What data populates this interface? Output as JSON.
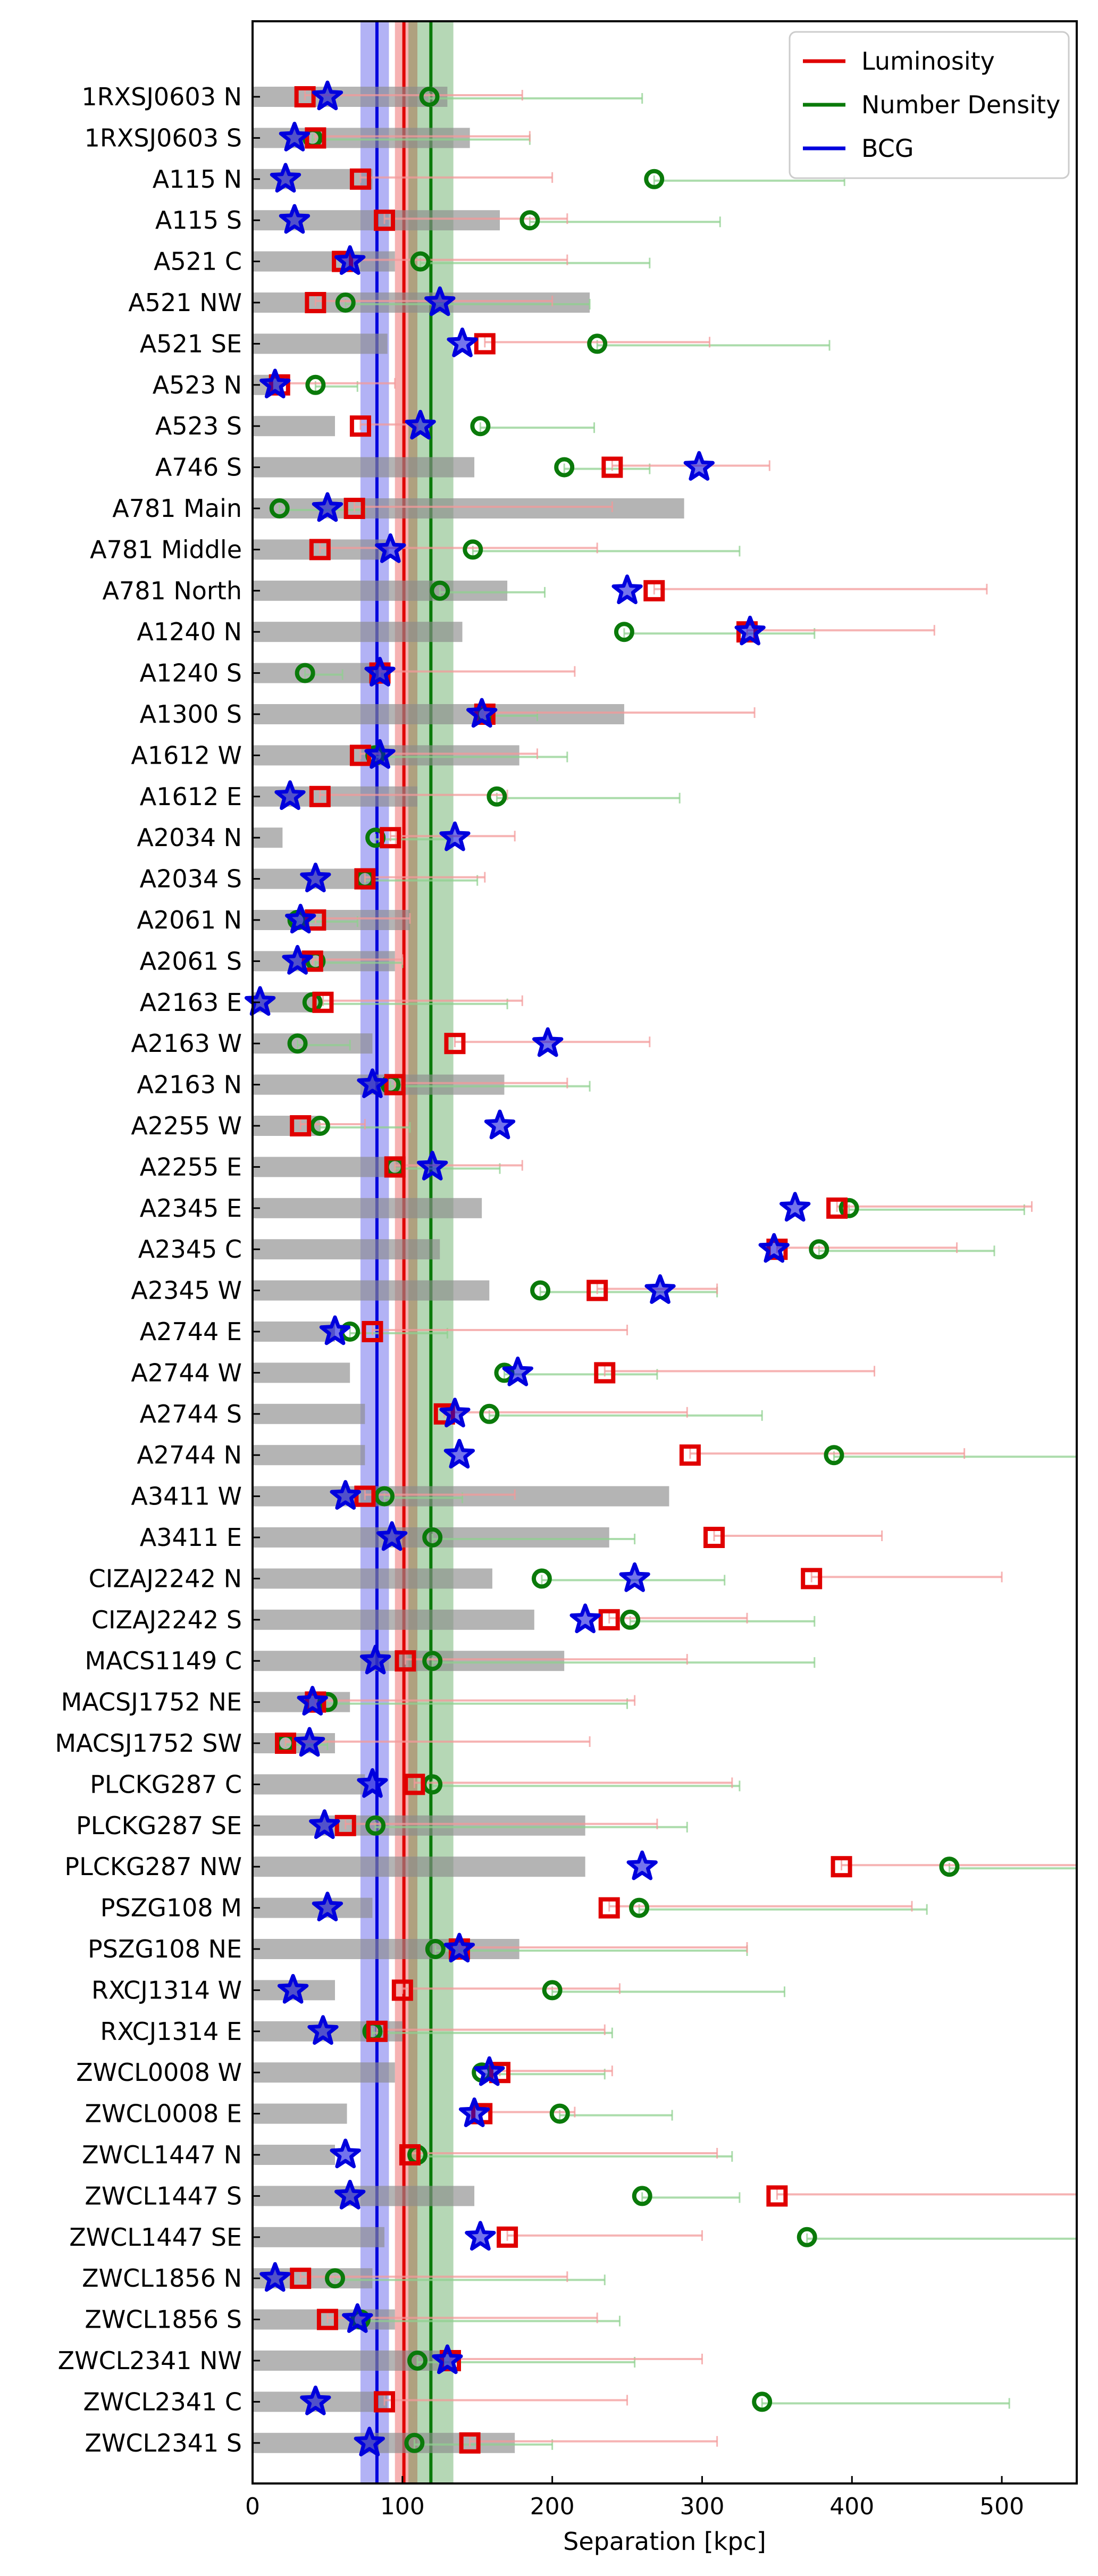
{
  "chart_data": {
    "type": "scatter",
    "orientation": "horizontal",
    "xlabel": "Separation [kpc]",
    "ylabel": "",
    "xlim": [
      0,
      550
    ],
    "xticks": [
      0,
      100,
      200,
      300,
      400,
      500
    ],
    "grid": false,
    "legend_position": "top-right",
    "legend": [
      {
        "name": "Luminosity",
        "color": "#e00000"
      },
      {
        "name": "Number Density",
        "color": "#0a7a0a"
      },
      {
        "name": "BCG",
        "color": "#0000dd"
      }
    ],
    "summary_bands": [
      {
        "name": "BCG",
        "color": "#0000dd",
        "value": 83,
        "low": 72,
        "high": 91
      },
      {
        "name": "Luminosity",
        "color": "#e00000",
        "value": 101,
        "low": 95,
        "high": 110
      },
      {
        "name": "Number Density",
        "color": "#0a7a0a",
        "value": 119,
        "low": 104,
        "high": 134
      }
    ],
    "series_colors": {
      "gray": "#8c8c8c",
      "err_lum": "#f39a9a",
      "err_num": "#8fd08f"
    },
    "categories": [
      "1RXSJ0603 N",
      "1RXSJ0603 S",
      "A115 N",
      "A115 S",
      "A521 C",
      "A521 NW",
      "A521 SE",
      "A523 N",
      "A523 S",
      "A746 S",
      "A781 Main",
      "A781 Middle",
      "A781 North",
      "A1240 N",
      "A1240 S",
      "A1300 S",
      "A1612 W",
      "A1612 E",
      "A2034 N",
      "A2034 S",
      "A2061 N",
      "A2061 S",
      "A2163 E",
      "A2163 W",
      "A2163 N",
      "A2255 W",
      "A2255 E",
      "A2345 E",
      "A2345 C",
      "A2345 W",
      "A2744 E",
      "A2744 W",
      "A2744 S",
      "A2744 N",
      "A3411 W",
      "A3411 E",
      "CIZAJ2242 N",
      "CIZAJ2242 S",
      "MACS1149 C",
      "MACSJ1752 NE",
      "MACSJ1752 SW",
      "PLCKG287 C",
      "PLCKG287 SE",
      "PLCKG287 NW",
      "PSZG108 M",
      "PSZG108 NE",
      "RXCJ1314 W",
      "RXCJ1314 E",
      "ZWCL0008 W",
      "ZWCL0008 E",
      "ZWCL1447 N",
      "ZWCL1447 S",
      "ZWCL1447 SE",
      "ZWCL1856 N",
      "ZWCL1856 S",
      "ZWCL2341 NW",
      "ZWCL2341 C",
      "ZWCL2341 S"
    ],
    "uncertainty": [
      130,
      145,
      80,
      165,
      95,
      225,
      90,
      20,
      55,
      148,
      288,
      90,
      170,
      140,
      90,
      248,
      178,
      110,
      20,
      80,
      105,
      95,
      45,
      80,
      168,
      45,
      100,
      153,
      125,
      158,
      55,
      65,
      75,
      75,
      278,
      238,
      160,
      188,
      208,
      65,
      55,
      75,
      222,
      222,
      80,
      178,
      55,
      100,
      95,
      63,
      55,
      148,
      88,
      80,
      95,
      128,
      90,
      175
    ],
    "luminosity": [
      35,
      42,
      72,
      88,
      60,
      42,
      155,
      18,
      72,
      240,
      68,
      45,
      268,
      330,
      85,
      155,
      72,
      45,
      92,
      75,
      42,
      40,
      47,
      135,
      95,
      32,
      95,
      390,
      350,
      230,
      80,
      235,
      128,
      292,
      75,
      308,
      373,
      238,
      102,
      42,
      22,
      108,
      62,
      393,
      238,
      138,
      100,
      83,
      165,
      153,
      105,
      350,
      170,
      32,
      50,
      132,
      88,
      145
    ],
    "number_density": [
      118,
      40,
      268,
      185,
      112,
      62,
      230,
      42,
      152,
      208,
      18,
      147,
      125,
      248,
      35,
      155,
      82,
      163,
      82,
      75,
      30,
      42,
      40,
      30,
      92,
      45,
      95,
      398,
      378,
      192,
      65,
      168,
      158,
      388,
      88,
      120,
      193,
      252,
      120,
      50,
      22,
      120,
      82,
      465,
      258,
      122,
      200,
      80,
      153,
      205,
      110,
      260,
      370,
      55,
      72,
      110,
      340,
      108
    ],
    "bcg": [
      50,
      28,
      22,
      28,
      65,
      125,
      140,
      15,
      112,
      298,
      50,
      92,
      250,
      332,
      85,
      153,
      85,
      25,
      135,
      42,
      32,
      30,
      5,
      197,
      80,
      165,
      120,
      362,
      348,
      272,
      55,
      177,
      135,
      138,
      62,
      93,
      255,
      222,
      82,
      40,
      38,
      80,
      48,
      260,
      50,
      138,
      27,
      47,
      158,
      148,
      62,
      65,
      152,
      15,
      70,
      130,
      42,
      78
    ],
    "err_lum": [
      180,
      185,
      200,
      210,
      210,
      200,
      305,
      95,
      110,
      345,
      240,
      230,
      490,
      455,
      215,
      335,
      190,
      170,
      175,
      155,
      105,
      100,
      180,
      265,
      210,
      75,
      180,
      520,
      470,
      310,
      250,
      415,
      290,
      475,
      175,
      420,
      500,
      330,
      290,
      255,
      225,
      320,
      270,
      550,
      440,
      330,
      245,
      235,
      240,
      215,
      310,
      550,
      300,
      210,
      230,
      300,
      250,
      310
    ],
    "err_num": [
      260,
      185,
      395,
      312,
      265,
      225,
      385,
      70,
      228,
      265,
      75,
      325,
      195,
      375,
      60,
      190,
      210,
      285,
      132,
      150,
      70,
      100,
      170,
      65,
      225,
      105,
      165,
      515,
      495,
      310,
      130,
      270,
      340,
      550,
      140,
      255,
      315,
      375,
      375,
      250,
      50,
      325,
      290,
      550,
      450,
      330,
      355,
      240,
      235,
      280,
      320,
      325,
      550,
      235,
      245,
      255,
      505,
      200
    ],
    "x_annotations": []
  }
}
